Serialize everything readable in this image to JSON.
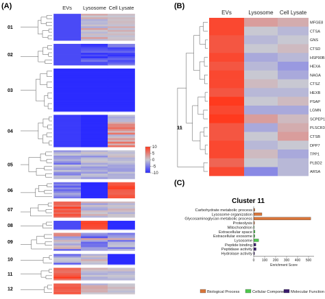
{
  "panels": {
    "a": {
      "label": "(A)"
    },
    "b": {
      "label": "(B)"
    },
    "c": {
      "label": "(C)"
    }
  },
  "heatmap_a": {
    "columns": [
      "EVs",
      "Lysosome",
      "Cell Lysate"
    ],
    "clusters": [
      {
        "id": "01",
        "rows": 15,
        "ev": -8,
        "lys": [
          -2,
          3
        ],
        "cl": [
          -1,
          2
        ]
      },
      {
        "id": "02",
        "rows": 12,
        "ev": -8,
        "lys": [
          -10,
          -5
        ],
        "cl": [
          -10,
          -4
        ]
      },
      {
        "id": "03",
        "rows": 24,
        "ev": -10,
        "lys": [
          -10,
          -10
        ],
        "cl": [
          -10,
          -10
        ]
      },
      {
        "id": "04",
        "rows": 18,
        "ev": -9,
        "lys": [
          -10,
          -10
        ],
        "cl": [
          -2,
          7
        ]
      },
      {
        "id": "05",
        "rows": 16,
        "ev": [
          -6,
          0
        ],
        "lys": [
          -4,
          1
        ],
        "cl": [
          -3,
          1
        ]
      },
      {
        "id": "06",
        "rows": 9,
        "ev": [
          -7,
          0
        ],
        "lys": [
          -10,
          -10
        ],
        "cl": [
          7,
          10
        ]
      },
      {
        "id": "07",
        "rows": 9,
        "ev": [
          5,
          10
        ],
        "lys": [
          -3,
          2
        ],
        "cl": [
          -2,
          2
        ]
      },
      {
        "id": "08",
        "rows": 5,
        "ev": -8,
        "lys": [
          8,
          10
        ],
        "cl": [
          -10,
          -10
        ]
      },
      {
        "id": "09",
        "rows": 10,
        "ev": [
          -6,
          6
        ],
        "lys": [
          -8,
          3
        ],
        "cl": [
          -6,
          4
        ]
      },
      {
        "id": "10",
        "rows": 6,
        "ev": [
          -7,
          1
        ],
        "lys": [
          -2,
          2
        ],
        "cl": [
          -10,
          -10
        ]
      },
      {
        "id": "11",
        "rows": 7,
        "ev": [
          6,
          10
        ],
        "lys": [
          -2,
          2
        ],
        "cl": [
          -2,
          2
        ]
      },
      {
        "id": "12",
        "rows": 6,
        "ev": [
          6,
          10
        ],
        "lys": [
          -2,
          3
        ],
        "cl": [
          -2,
          3
        ]
      }
    ],
    "legend": {
      "ticks": [
        "10",
        "5",
        "0",
        "-5",
        "-10"
      ],
      "max": 10,
      "min": -10
    }
  },
  "heatmap_b": {
    "columns": [
      "EVs",
      "Lysosome",
      "Cell Lysate"
    ],
    "cluster_label": "11",
    "genes": [
      {
        "name": "MFGE8",
        "ev": 9,
        "lys": 3,
        "cl": 2
      },
      {
        "name": "CTSA",
        "ev": 9,
        "lys": 0,
        "cl": -1
      },
      {
        "name": "GNS",
        "ev": 8,
        "lys": -1,
        "cl": 0
      },
      {
        "name": "CTSD",
        "ev": 8,
        "lys": 0,
        "cl": 1
      },
      {
        "name": "HSP90B1",
        "ev": 9,
        "lys": -2,
        "cl": -1
      },
      {
        "name": "HEXA",
        "ev": 8,
        "lys": -1,
        "cl": -3
      },
      {
        "name": "NAGA",
        "ev": 9,
        "lys": 0,
        "cl": -2
      },
      {
        "name": "CTSZ",
        "ev": 9,
        "lys": 1,
        "cl": 0
      },
      {
        "name": "HEXB",
        "ev": 8,
        "lys": -1,
        "cl": -1
      },
      {
        "name": "PSAP",
        "ev": 10,
        "lys": 0,
        "cl": 1
      },
      {
        "name": "LGMN",
        "ev": 9,
        "lys": -2,
        "cl": -2
      },
      {
        "name": "SCPEP1",
        "ev": 10,
        "lys": 3,
        "cl": 1
      },
      {
        "name": "PLSCR3",
        "ev": 8,
        "lys": -2,
        "cl": 2
      },
      {
        "name": "CTSB",
        "ev": 8,
        "lys": 0,
        "cl": 3
      },
      {
        "name": "DPP7",
        "ev": 9,
        "lys": -1,
        "cl": 0
      },
      {
        "name": "TPP1",
        "ev": 9,
        "lys": 1,
        "cl": -2
      },
      {
        "name": "PLBD2",
        "ev": 7,
        "lys": 0,
        "cl": -1
      },
      {
        "name": "ARSA",
        "ev": 9,
        "lys": -4,
        "cl": -1
      }
    ]
  },
  "chart_data": {
    "type": "bar",
    "title": "Cluster 11",
    "xlabel": "Enrichment Score",
    "ylabel": "",
    "categories": [
      "Carbohydrate metabolic process",
      "Lysosome organization",
      "Glycosaminoglycan metabolic process",
      "Proteolysis",
      "Mitochondrion",
      "Extracellular space",
      "Extracellular exosome",
      "Lysosome",
      "Peptide binding",
      "Peptidase activity",
      "Hydrolase activity"
    ],
    "values": [
      10,
      75,
      520,
      8,
      5,
      12,
      10,
      45,
      20,
      22,
      8
    ],
    "groups": [
      "Biological Process",
      "Biological Process",
      "Biological Process",
      "Biological Process",
      "Cellular Component",
      "Cellular Component",
      "Cellular Component",
      "Cellular Component",
      "Molecular Function",
      "Molecular Function",
      "Molecular Function"
    ],
    "xlim": [
      0,
      550
    ],
    "xticks": [
      "0",
      "100",
      "200",
      "300",
      "400",
      "500"
    ],
    "xtick_values": [
      0,
      100,
      200,
      300,
      400,
      500
    ],
    "legend": [
      {
        "name": "Biological Process",
        "color": "#d9763a"
      },
      {
        "name": "Cellular Component",
        "color": "#4ec94e"
      },
      {
        "name": "Molecular Function",
        "color": "#3a1c6e"
      }
    ],
    "legend_placement": "bottom"
  },
  "colors": {
    "low": "#2b2bff",
    "mid": "#c8c8d2",
    "high": "#ff3a1e"
  }
}
